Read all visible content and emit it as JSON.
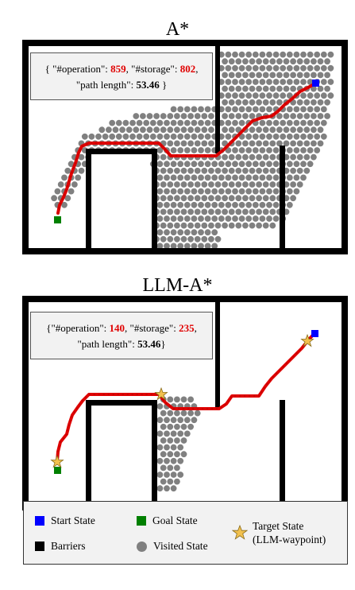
{
  "panels": [
    {
      "title": "A*",
      "stats": {
        "operation_key": "\"#operation\"",
        "operation": "859",
        "storage_key": "\"#storage\"",
        "storage": "802",
        "path_key": "\"path length\"",
        "path_length": "53.46"
      }
    },
    {
      "title": "LLM-A*",
      "stats": {
        "operation_key": "\"#operation\"",
        "operation": "140",
        "storage_key": "\"#storage\"",
        "storage": "235",
        "path_key": "\"path length\"",
        "path_length": "53.46"
      }
    }
  ],
  "legend": {
    "start": "Start State",
    "goal": "Goal State",
    "barriers": "Barriers",
    "visited": "Visited State",
    "target_line1": "Target State",
    "target_line2": "(LLM-waypoint)"
  },
  "colors": {
    "start": "#0000ff",
    "goal": "#008000",
    "barrier": "#000000",
    "visited": "#808080",
    "path": "#e00000",
    "target": "#f2c14e"
  }
}
